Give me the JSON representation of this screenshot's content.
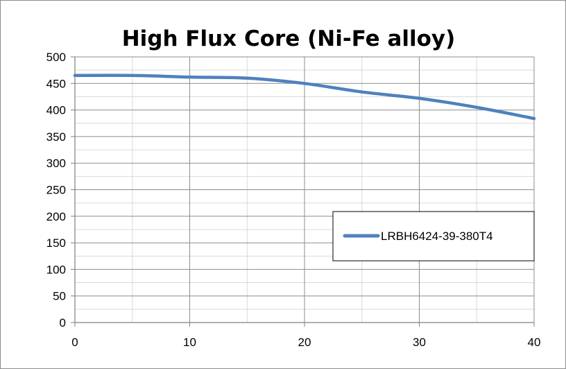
{
  "chart_data": {
    "type": "line",
    "title": "High Flux Core (Ni-Fe alloy)",
    "xlabel": "",
    "ylabel": "",
    "xlim": [
      0,
      40
    ],
    "ylim": [
      0,
      500
    ],
    "x_ticks": [
      0,
      10,
      20,
      30,
      40
    ],
    "y_ticks": [
      0,
      50,
      100,
      150,
      200,
      250,
      300,
      350,
      400,
      450,
      500
    ],
    "grid": true,
    "legend_position": "right",
    "series": [
      {
        "name": "LRBH6424-39-380T4",
        "color": "#4f81bd",
        "x": [
          0,
          5,
          10,
          15,
          20,
          25,
          30,
          35,
          40
        ],
        "y": [
          465,
          465,
          462,
          460,
          450,
          434,
          422,
          405,
          384
        ]
      }
    ]
  }
}
